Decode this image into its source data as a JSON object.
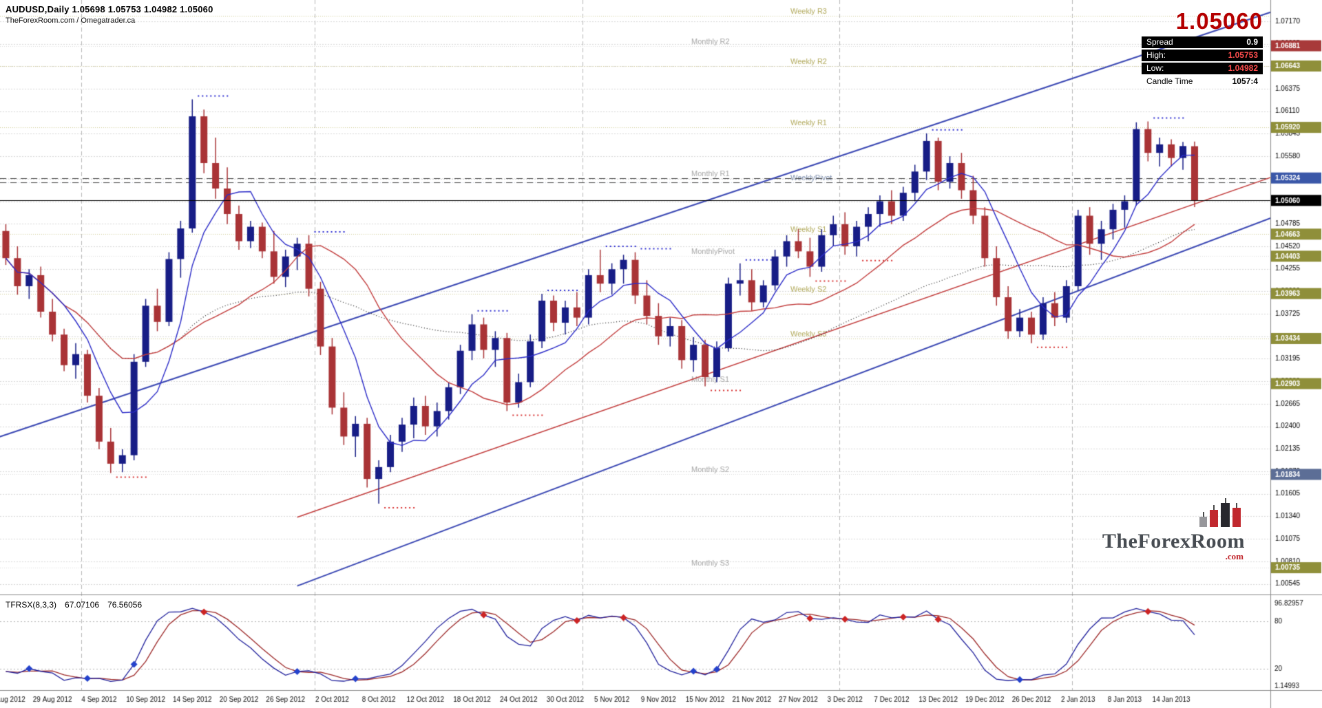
{
  "header": {
    "symbol_line": "AUDUSD,Daily 1.05698 1.05753 1.04982 1.05060",
    "credit_line": "TheForexRoom.com / Omegatrader.ca"
  },
  "info_panel": {
    "price": "1.05060",
    "spread_label": "Spread",
    "spread_value": "0.9",
    "high_label": "High:",
    "high_value": "1.05753",
    "low_label": "Low:",
    "low_value": "1.04982",
    "candle_time_label": "Candle Time",
    "candle_time_value": "1057:4"
  },
  "logo": {
    "text": "TheForexRoom",
    "tld": ".com"
  },
  "indicator_label": {
    "name": "TFRSX(8,3,3)",
    "value1": "67.07106",
    "value2": "76.56056"
  },
  "chart_data": {
    "type": "candlestick",
    "title": "AUDUSD,Daily",
    "display_ohlc": {
      "open": "1.05698",
      "high": "1.05753",
      "low": "1.04982",
      "close": "1.05060"
    },
    "current_price": 1.0506,
    "resistance_dashed": [
      1.05324,
      1.0527
    ],
    "colors": {
      "background": "#ffffff",
      "bull": "#171d86",
      "bear": "#a93336",
      "grid": "#d8d8d8",
      "fractal_high": "#2a2ad0",
      "fractal_low": "#d83030",
      "current_price_line": "#000000"
    },
    "price_axis": {
      "top": 1.0742,
      "bottom": 1.0042,
      "ticks": [
        "1.07170",
        "1.06905",
        "1.06640",
        "1.06375",
        "1.06110",
        "1.05845",
        "1.05580",
        "1.05315",
        "1.05050",
        "1.04785",
        "1.04520",
        "1.04255",
        "1.03990",
        "1.03725",
        "1.03460",
        "1.03195",
        "1.02930",
        "1.02665",
        "1.02400",
        "1.02135",
        "1.01870",
        "1.01605",
        "1.01340",
        "1.01075",
        "1.00810",
        "1.00545"
      ],
      "tags": [
        {
          "text": "1.06881",
          "price": 1.06881,
          "bg": "#a83a3a"
        },
        {
          "text": "1.06643",
          "price": 1.06643,
          "bg": "#8f8f3a"
        },
        {
          "text": "1.05920",
          "price": 1.0592,
          "bg": "#8f8f3a"
        },
        {
          "text": "1.05324",
          "price": 1.05324,
          "bg": "#3a57a8"
        },
        {
          "text": "1.05060",
          "price": 1.0506,
          "bg": "#000000"
        },
        {
          "text": "1.04663",
          "price": 1.04663,
          "bg": "#8f8f3a"
        },
        {
          "text": "1.04403",
          "price": 1.04403,
          "bg": "#8f8f3a"
        },
        {
          "text": "1.03963",
          "price": 1.03963,
          "bg": "#8f8f3a"
        },
        {
          "text": "1.03434",
          "price": 1.03434,
          "bg": "#8f8f3a"
        },
        {
          "text": "1.02903",
          "price": 1.02903,
          "bg": "#8f8f3a"
        },
        {
          "text": "1.01834",
          "price": 1.01834,
          "bg": "#5c6e96"
        },
        {
          "text": "1.00735",
          "price": 1.00735,
          "bg": "#8f8f3a"
        }
      ]
    },
    "x_axis": {
      "label_every": 4
    },
    "pivots": [
      {
        "label": "Weekly R3",
        "price": 1.0723,
        "type": "weekly"
      },
      {
        "label": "Monthly R2",
        "price": 1.06881,
        "type": "monthly"
      },
      {
        "label": "Weekly R2",
        "price": 1.06643,
        "type": "weekly"
      },
      {
        "label": "Weekly R1",
        "price": 1.0592,
        "type": "weekly"
      },
      {
        "label": "Monthly R1",
        "price": 1.05324,
        "type": "monthly"
      },
      {
        "label": "WeeklyPivot",
        "price": 1.0527,
        "type": "pivot"
      },
      {
        "label": "Weekly S1",
        "price": 1.04663,
        "type": "weekly"
      },
      {
        "label": "MonthlyPivot",
        "price": 1.04403,
        "type": "monthly"
      },
      {
        "label": "Weekly S2",
        "price": 1.03963,
        "type": "weekly"
      },
      {
        "label": "Weekly S3",
        "price": 1.03434,
        "type": "weekly"
      },
      {
        "label": "Monthly S1",
        "price": 1.02903,
        "type": "monthly"
      },
      {
        "label": "Monthly S2",
        "price": 1.01834,
        "type": "monthly"
      },
      {
        "label": "Monthly S3",
        "price": 1.00735,
        "type": "monthly"
      }
    ],
    "trendlines": [
      {
        "name": "channel-upper",
        "i1": -2,
        "p1": 1.0221,
        "i2": 111,
        "p2": 1.0739,
        "color": "#3c49b4",
        "width": 2
      },
      {
        "name": "channel-lower",
        "i1": 25,
        "p1": 1.0052,
        "i2": 111,
        "p2": 1.0498,
        "color": "#3c49b4",
        "width": 2
      },
      {
        "name": "support-trendline",
        "i1": 25,
        "p1": 1.0133,
        "i2": 111,
        "p2": 1.0545,
        "color": "#c23b3b",
        "width": 1.5
      }
    ],
    "moving_averages": [
      {
        "name": "fast-ma",
        "period": 6,
        "color": "#2b2bc8",
        "width": 1.4,
        "style": "solid"
      },
      {
        "name": "slow-ma",
        "period": 16,
        "color": "#c23b3b",
        "width": 1.4,
        "style": "solid"
      },
      {
        "name": "long-ma",
        "period": 40,
        "color": "#1a1a1a",
        "width": 1.2,
        "style": "dotted"
      }
    ],
    "indicator": {
      "name": "TFRSX",
      "params": [
        8,
        3,
        3
      ],
      "levels": [
        80,
        20
      ],
      "scale": {
        "max_label": "96.82957",
        "min_label": "1.14993",
        "high_label": "80",
        "low_label": "20"
      },
      "colors": {
        "main": "#20209c",
        "signal": "#9c2626",
        "diamond_up": "#2442cc",
        "diamond_down": "#cc2424"
      }
    },
    "candles": [
      {
        "d": "23 Aug 2012",
        "o": 1.047,
        "h": 1.0478,
        "l": 1.043,
        "c": 1.0438
      },
      {
        "d": "24 Aug 2012",
        "o": 1.0438,
        "h": 1.0452,
        "l": 1.0395,
        "c": 1.0405
      },
      {
        "d": "27 Aug 2012",
        "o": 1.0405,
        "h": 1.0425,
        "l": 1.039,
        "c": 1.0418
      },
      {
        "d": "28 Aug 2012",
        "o": 1.0418,
        "h": 1.0428,
        "l": 1.0368,
        "c": 1.0375
      },
      {
        "d": "29 Aug 2012",
        "o": 1.0375,
        "h": 1.039,
        "l": 1.034,
        "c": 1.0348
      },
      {
        "d": "30 Aug 2012",
        "o": 1.0348,
        "h": 1.0355,
        "l": 1.0305,
        "c": 1.0312
      },
      {
        "d": "31 Aug 2012",
        "o": 1.0312,
        "h": 1.0338,
        "l": 1.0296,
        "c": 1.0325
      },
      {
        "d": "3 Sep 2012",
        "o": 1.0325,
        "h": 1.033,
        "l": 1.0268,
        "c": 1.0276
      },
      {
        "d": "4 Sep 2012",
        "o": 1.0276,
        "h": 1.0285,
        "l": 1.0213,
        "c": 1.0222
      },
      {
        "d": "5 Sep 2012",
        "o": 1.0222,
        "h": 1.0238,
        "l": 1.0185,
        "c": 1.0196
      },
      {
        "d": "6 Sep 2012",
        "o": 1.0196,
        "h": 1.0213,
        "l": 1.0186,
        "c": 1.0206
      },
      {
        "d": "7 Sep 2012",
        "o": 1.0206,
        "h": 1.0325,
        "l": 1.02,
        "c": 1.0316
      },
      {
        "d": "10 Sep 2012",
        "o": 1.0316,
        "h": 1.039,
        "l": 1.031,
        "c": 1.0382
      },
      {
        "d": "11 Sep 2012",
        "o": 1.0382,
        "h": 1.0402,
        "l": 1.0352,
        "c": 1.0363
      },
      {
        "d": "12 Sep 2012",
        "o": 1.0363,
        "h": 1.0445,
        "l": 1.0358,
        "c": 1.0437
      },
      {
        "d": "13 Sep 2012",
        "o": 1.0437,
        "h": 1.0482,
        "l": 1.0415,
        "c": 1.0473
      },
      {
        "d": "14 Sep 2012",
        "o": 1.0473,
        "h": 1.0625,
        "l": 1.0468,
        "c": 1.0605
      },
      {
        "d": "17 Sep 2012",
        "o": 1.0605,
        "h": 1.0613,
        "l": 1.0538,
        "c": 1.055
      },
      {
        "d": "18 Sep 2012",
        "o": 1.055,
        "h": 1.058,
        "l": 1.0508,
        "c": 1.052
      },
      {
        "d": "19 Sep 2012",
        "o": 1.052,
        "h": 1.0545,
        "l": 1.0478,
        "c": 1.049
      },
      {
        "d": "20 Sep 2012",
        "o": 1.049,
        "h": 1.05,
        "l": 1.0448,
        "c": 1.0458
      },
      {
        "d": "21 Sep 2012",
        "o": 1.0458,
        "h": 1.0482,
        "l": 1.045,
        "c": 1.0475
      },
      {
        "d": "24 Sep 2012",
        "o": 1.0475,
        "h": 1.048,
        "l": 1.0438,
        "c": 1.0446
      },
      {
        "d": "25 Sep 2012",
        "o": 1.0446,
        "h": 1.047,
        "l": 1.0408,
        "c": 1.0416
      },
      {
        "d": "26 Sep 2012",
        "o": 1.0416,
        "h": 1.0448,
        "l": 1.0404,
        "c": 1.044
      },
      {
        "d": "27 Sep 2012",
        "o": 1.044,
        "h": 1.0462,
        "l": 1.0424,
        "c": 1.0455
      },
      {
        "d": "28 Sep 2012",
        "o": 1.0455,
        "h": 1.0465,
        "l": 1.0393,
        "c": 1.0402
      },
      {
        "d": "1 Oct 2012",
        "o": 1.0402,
        "h": 1.041,
        "l": 1.0324,
        "c": 1.0334
      },
      {
        "d": "2 Oct 2012",
        "o": 1.0334,
        "h": 1.0344,
        "l": 1.0254,
        "c": 1.0262
      },
      {
        "d": "3 Oct 2012",
        "o": 1.0262,
        "h": 1.028,
        "l": 1.0218,
        "c": 1.0228
      },
      {
        "d": "4 Oct 2012",
        "o": 1.0228,
        "h": 1.0252,
        "l": 1.0204,
        "c": 1.0243
      },
      {
        "d": "5 Oct 2012",
        "o": 1.0243,
        "h": 1.025,
        "l": 1.0168,
        "c": 1.0178
      },
      {
        "d": "8 Oct 2012",
        "o": 1.0178,
        "h": 1.02,
        "l": 1.0149,
        "c": 1.0192
      },
      {
        "d": "9 Oct 2012",
        "o": 1.0192,
        "h": 1.023,
        "l": 1.0186,
        "c": 1.0222
      },
      {
        "d": "10 Oct 2012",
        "o": 1.0222,
        "h": 1.025,
        "l": 1.021,
        "c": 1.0242
      },
      {
        "d": "11 Oct 2012",
        "o": 1.0242,
        "h": 1.0274,
        "l": 1.0226,
        "c": 1.0264
      },
      {
        "d": "12 Oct 2012",
        "o": 1.0264,
        "h": 1.0276,
        "l": 1.023,
        "c": 1.024
      },
      {
        "d": "15 Oct 2012",
        "o": 1.024,
        "h": 1.0268,
        "l": 1.0228,
        "c": 1.0258
      },
      {
        "d": "16 Oct 2012",
        "o": 1.0258,
        "h": 1.0292,
        "l": 1.0248,
        "c": 1.0286
      },
      {
        "d": "17 Oct 2012",
        "o": 1.0286,
        "h": 1.0336,
        "l": 1.0278,
        "c": 1.0329
      },
      {
        "d": "18 Oct 2012",
        "o": 1.0329,
        "h": 1.0372,
        "l": 1.0318,
        "c": 1.036
      },
      {
        "d": "19 Oct 2012",
        "o": 1.036,
        "h": 1.0368,
        "l": 1.032,
        "c": 1.033
      },
      {
        "d": "22 Oct 2012",
        "o": 1.033,
        "h": 1.0352,
        "l": 1.031,
        "c": 1.0344
      },
      {
        "d": "23 Oct 2012",
        "o": 1.0344,
        "h": 1.035,
        "l": 1.0258,
        "c": 1.0268
      },
      {
        "d": "24 Oct 2012",
        "o": 1.0268,
        "h": 1.0302,
        "l": 1.0262,
        "c": 1.0292
      },
      {
        "d": "25 Oct 2012",
        "o": 1.0292,
        "h": 1.0348,
        "l": 1.0286,
        "c": 1.034
      },
      {
        "d": "26 Oct 2012",
        "o": 1.034,
        "h": 1.0396,
        "l": 1.0332,
        "c": 1.0388
      },
      {
        "d": "29 Oct 2012",
        "o": 1.0388,
        "h": 1.0394,
        "l": 1.0352,
        "c": 1.0362
      },
      {
        "d": "30 Oct 2012",
        "o": 1.0362,
        "h": 1.0388,
        "l": 1.0348,
        "c": 1.038
      },
      {
        "d": "31 Oct 2012",
        "o": 1.038,
        "h": 1.0398,
        "l": 1.0358,
        "c": 1.0368
      },
      {
        "d": "1 Nov 2012",
        "o": 1.0368,
        "h": 1.0425,
        "l": 1.036,
        "c": 1.0418
      },
      {
        "d": "2 Nov 2012",
        "o": 1.0418,
        "h": 1.0448,
        "l": 1.0398,
        "c": 1.0408
      },
      {
        "d": "5 Nov 2012",
        "o": 1.0408,
        "h": 1.0432,
        "l": 1.0395,
        "c": 1.0425
      },
      {
        "d": "6 Nov 2012",
        "o": 1.0425,
        "h": 1.0442,
        "l": 1.0408,
        "c": 1.0436
      },
      {
        "d": "7 Nov 2012",
        "o": 1.0436,
        "h": 1.0445,
        "l": 1.0384,
        "c": 1.0394
      },
      {
        "d": "8 Nov 2012",
        "o": 1.0394,
        "h": 1.0412,
        "l": 1.036,
        "c": 1.037
      },
      {
        "d": "9 Nov 2012",
        "o": 1.037,
        "h": 1.0385,
        "l": 1.0336,
        "c": 1.0346
      },
      {
        "d": "12 Nov 2012",
        "o": 1.0346,
        "h": 1.0368,
        "l": 1.0334,
        "c": 1.0358
      },
      {
        "d": "13 Nov 2012",
        "o": 1.0358,
        "h": 1.0365,
        "l": 1.0308,
        "c": 1.0318
      },
      {
        "d": "14 Nov 2012",
        "o": 1.0318,
        "h": 1.0345,
        "l": 1.0304,
        "c": 1.0336
      },
      {
        "d": "15 Nov 2012",
        "o": 1.0336,
        "h": 1.0342,
        "l": 1.0287,
        "c": 1.0298
      },
      {
        "d": "16 Nov 2012",
        "o": 1.0298,
        "h": 1.034,
        "l": 1.0292,
        "c": 1.0332
      },
      {
        "d": "19 Nov 2012",
        "o": 1.0332,
        "h": 1.0415,
        "l": 1.0328,
        "c": 1.0408
      },
      {
        "d": "20 Nov 2012",
        "o": 1.0408,
        "h": 1.0432,
        "l": 1.0394,
        "c": 1.0412
      },
      {
        "d": "21 Nov 2012",
        "o": 1.0412,
        "h": 1.0425,
        "l": 1.0376,
        "c": 1.0386
      },
      {
        "d": "22 Nov 2012",
        "o": 1.0386,
        "h": 1.0412,
        "l": 1.038,
        "c": 1.0406
      },
      {
        "d": "23 Nov 2012",
        "o": 1.0406,
        "h": 1.0448,
        "l": 1.04,
        "c": 1.044
      },
      {
        "d": "26 Nov 2012",
        "o": 1.044,
        "h": 1.0465,
        "l": 1.0428,
        "c": 1.0458
      },
      {
        "d": "27 Nov 2012",
        "o": 1.0458,
        "h": 1.0472,
        "l": 1.0438,
        "c": 1.0446
      },
      {
        "d": "28 Nov 2012",
        "o": 1.0446,
        "h": 1.0462,
        "l": 1.0416,
        "c": 1.0428
      },
      {
        "d": "29 Nov 2012",
        "o": 1.0428,
        "h": 1.0472,
        "l": 1.0422,
        "c": 1.0465
      },
      {
        "d": "30 Nov 2012",
        "o": 1.0465,
        "h": 1.0488,
        "l": 1.0452,
        "c": 1.0478
      },
      {
        "d": "3 Dec 2012",
        "o": 1.0478,
        "h": 1.0492,
        "l": 1.0442,
        "c": 1.0452
      },
      {
        "d": "4 Dec 2012",
        "o": 1.0452,
        "h": 1.0482,
        "l": 1.044,
        "c": 1.0475
      },
      {
        "d": "5 Dec 2012",
        "o": 1.0475,
        "h": 1.0498,
        "l": 1.0458,
        "c": 1.049
      },
      {
        "d": "6 Dec 2012",
        "o": 1.049,
        "h": 1.0512,
        "l": 1.0475,
        "c": 1.0505
      },
      {
        "d": "7 Dec 2012",
        "o": 1.0505,
        "h": 1.0518,
        "l": 1.0478,
        "c": 1.0488
      },
      {
        "d": "10 Dec 2012",
        "o": 1.0488,
        "h": 1.0522,
        "l": 1.0482,
        "c": 1.0515
      },
      {
        "d": "11 Dec 2012",
        "o": 1.0515,
        "h": 1.0548,
        "l": 1.0505,
        "c": 1.054
      },
      {
        "d": "12 Dec 2012",
        "o": 1.054,
        "h": 1.0585,
        "l": 1.053,
        "c": 1.0576
      },
      {
        "d": "13 Dec 2012",
        "o": 1.0576,
        "h": 1.058,
        "l": 1.0518,
        "c": 1.0528
      },
      {
        "d": "14 Dec 2012",
        "o": 1.0528,
        "h": 1.0558,
        "l": 1.052,
        "c": 1.055
      },
      {
        "d": "17 Dec 2012",
        "o": 1.055,
        "h": 1.0562,
        "l": 1.0508,
        "c": 1.0518
      },
      {
        "d": "18 Dec 2012",
        "o": 1.0518,
        "h": 1.0535,
        "l": 1.0478,
        "c": 1.0488
      },
      {
        "d": "19 Dec 2012",
        "o": 1.0488,
        "h": 1.0498,
        "l": 1.0428,
        "c": 1.0438
      },
      {
        "d": "20 Dec 2012",
        "o": 1.0438,
        "h": 1.0452,
        "l": 1.0382,
        "c": 1.0392
      },
      {
        "d": "21 Dec 2012",
        "o": 1.0392,
        "h": 1.0405,
        "l": 1.0343,
        "c": 1.0352
      },
      {
        "d": "24 Dec 2012",
        "o": 1.0352,
        "h": 1.0378,
        "l": 1.0345,
        "c": 1.0368
      },
      {
        "d": "26 Dec 2012",
        "o": 1.0368,
        "h": 1.0375,
        "l": 1.0338,
        "c": 1.0348
      },
      {
        "d": "27 Dec 2012",
        "o": 1.0348,
        "h": 1.0392,
        "l": 1.0342,
        "c": 1.0385
      },
      {
        "d": "28 Dec 2012",
        "o": 1.0385,
        "h": 1.0398,
        "l": 1.0358,
        "c": 1.0368
      },
      {
        "d": "31 Dec 2012",
        "o": 1.0368,
        "h": 1.0412,
        "l": 1.0362,
        "c": 1.0405
      },
      {
        "d": "2 Jan 2013",
        "o": 1.0405,
        "h": 1.0495,
        "l": 1.04,
        "c": 1.0488
      },
      {
        "d": "3 Jan 2013",
        "o": 1.0488,
        "h": 1.0498,
        "l": 1.0442,
        "c": 1.0455
      },
      {
        "d": "4 Jan 2013",
        "o": 1.0455,
        "h": 1.0482,
        "l": 1.0436,
        "c": 1.0472
      },
      {
        "d": "7 Jan 2013",
        "o": 1.0472,
        "h": 1.0502,
        "l": 1.046,
        "c": 1.0495
      },
      {
        "d": "8 Jan 2013",
        "o": 1.0495,
        "h": 1.0512,
        "l": 1.0474,
        "c": 1.0505
      },
      {
        "d": "9 Jan 2013",
        "o": 1.0505,
        "h": 1.0598,
        "l": 1.05,
        "c": 1.059
      },
      {
        "d": "10 Jan 2013",
        "o": 1.059,
        "h": 1.0599,
        "l": 1.0552,
        "c": 1.0562
      },
      {
        "d": "11 Jan 2013",
        "o": 1.0562,
        "h": 1.058,
        "l": 1.0546,
        "c": 1.0572
      },
      {
        "d": "14 Jan 2013",
        "o": 1.0572,
        "h": 1.0578,
        "l": 1.0546,
        "c": 1.0556
      },
      {
        "d": "15 Jan 2013",
        "o": 1.0556,
        "h": 1.0575,
        "l": 1.0542,
        "c": 1.057
      },
      {
        "d": "16 Jan 2013",
        "o": 1.05698,
        "h": 1.05753,
        "l": 1.04982,
        "c": 1.0506
      }
    ]
  }
}
